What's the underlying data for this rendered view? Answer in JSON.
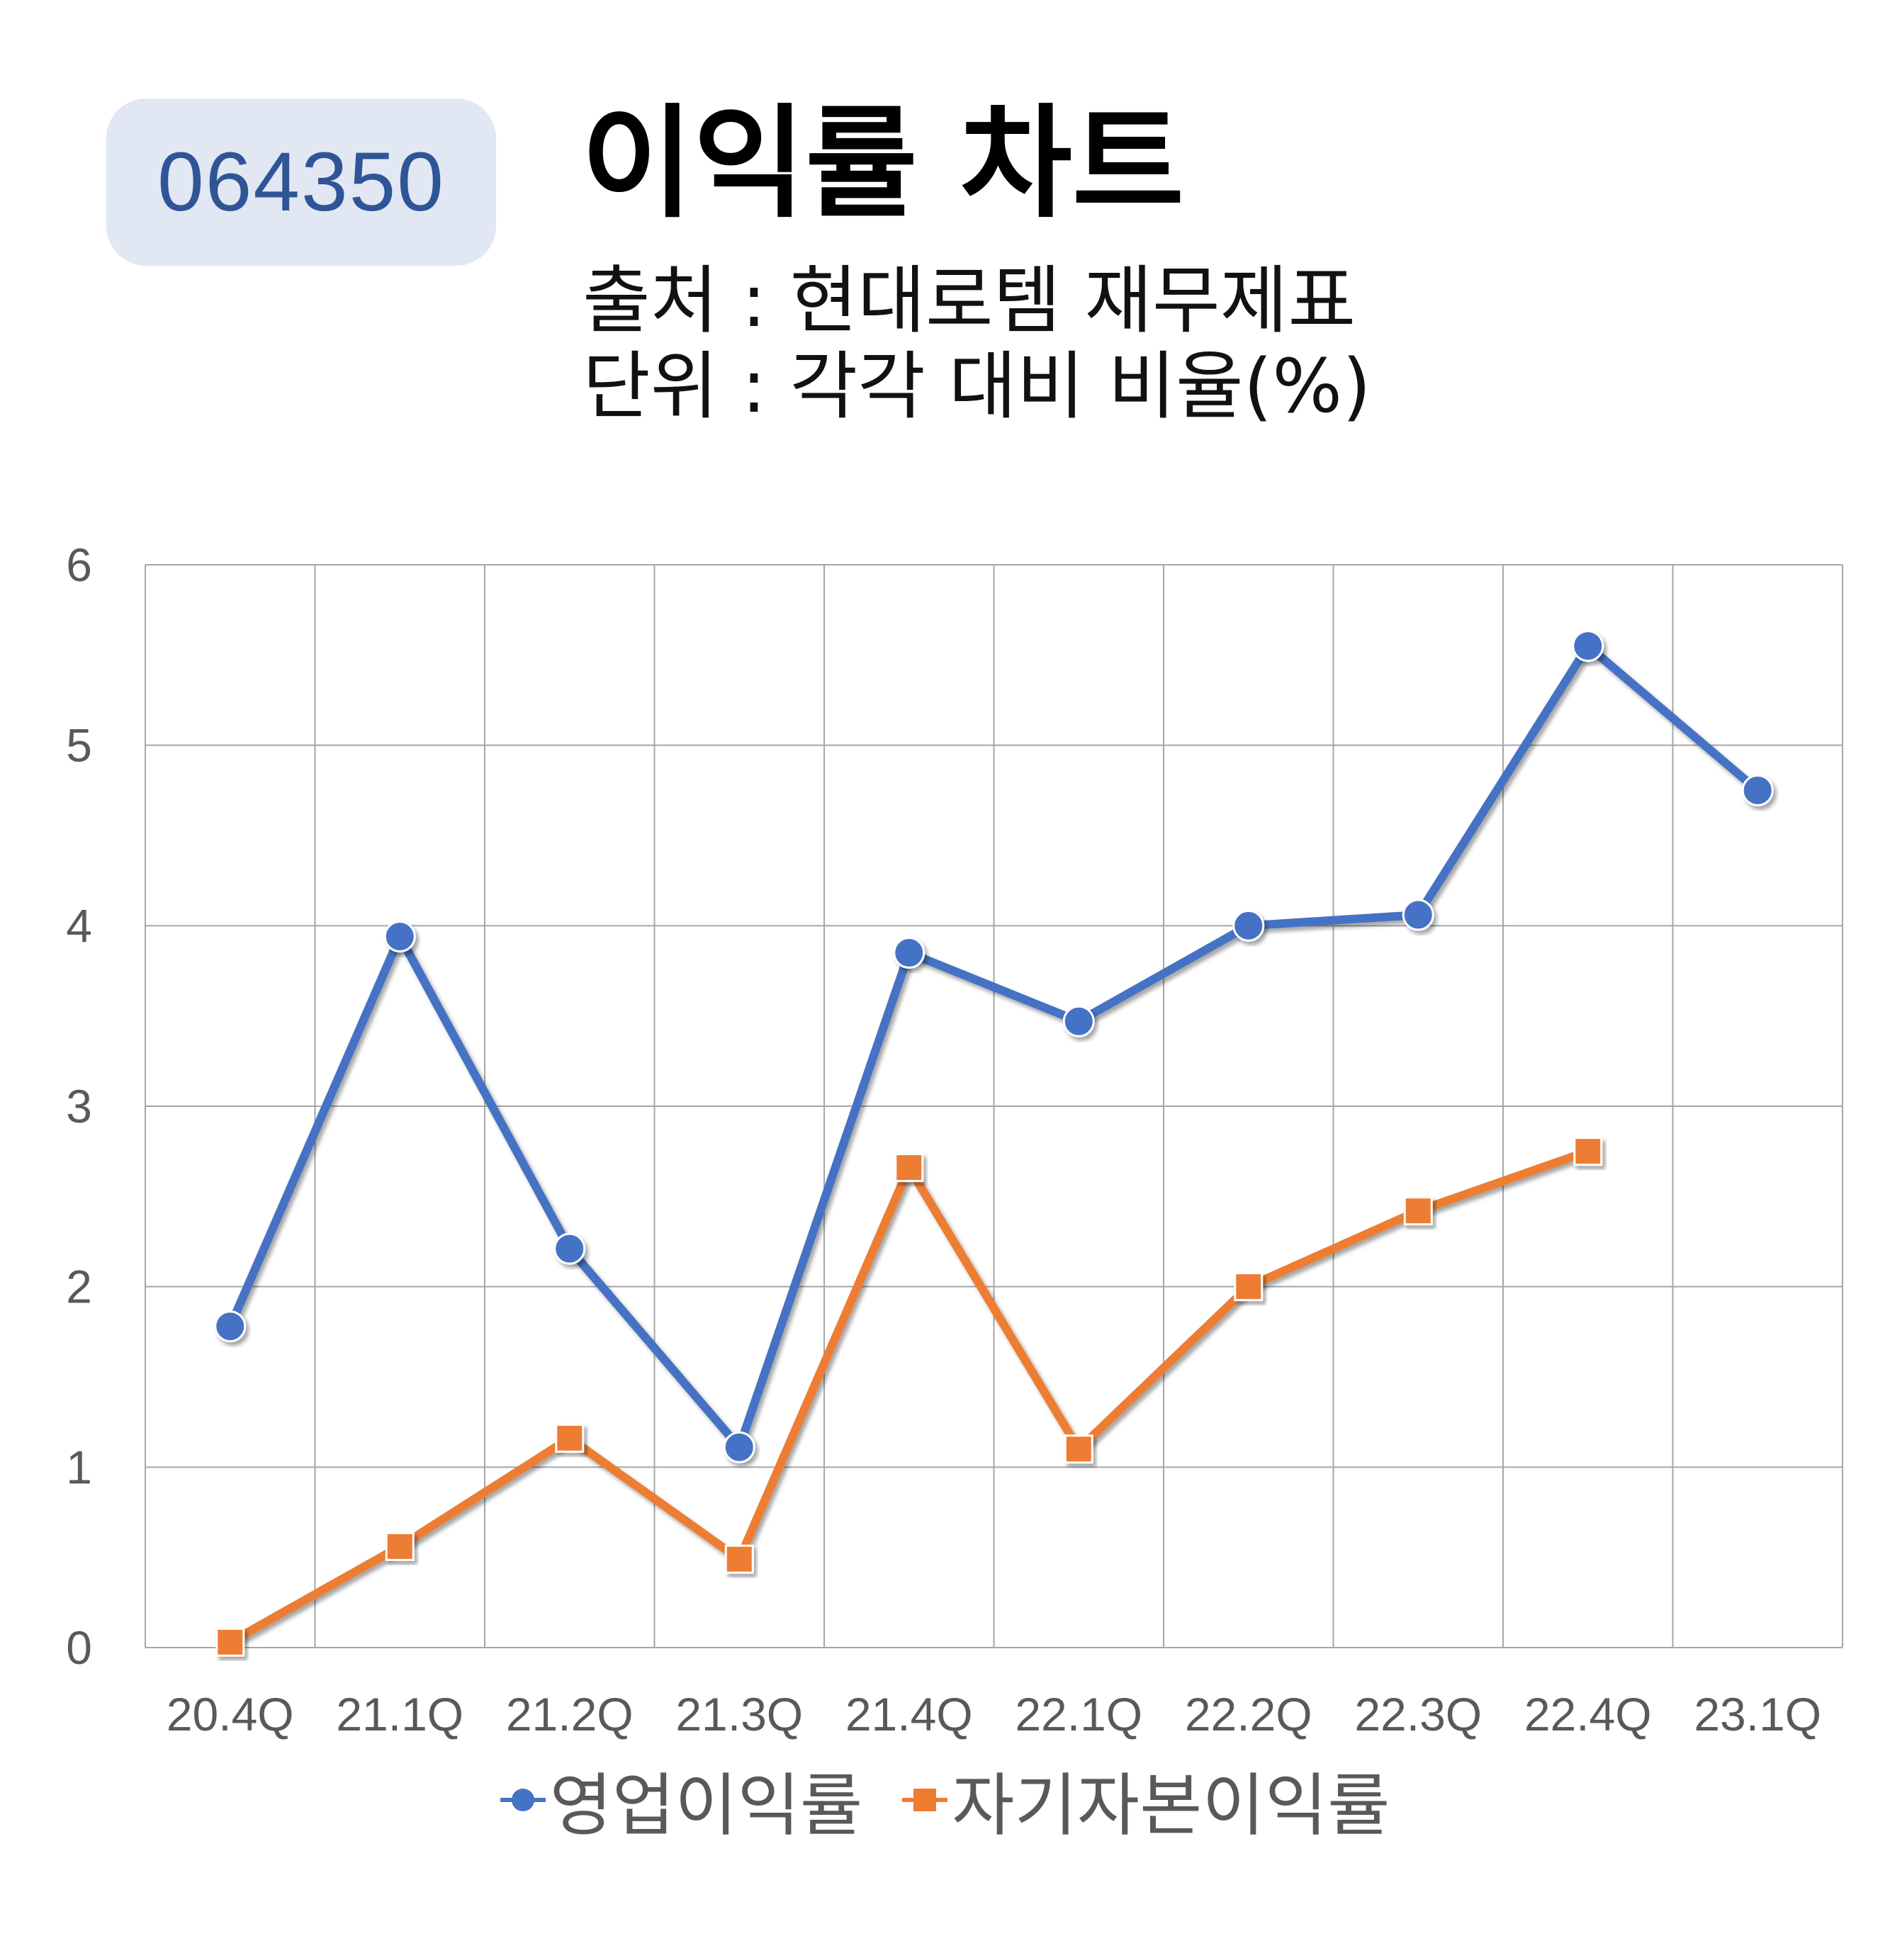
{
  "badge": {
    "code": "064350"
  },
  "header": {
    "title": "이익률 차트",
    "source": "출처 : 현대로템 재무제표",
    "unit": "단위 : 각각 대비 비율(%)"
  },
  "colors": {
    "operating": "#4472c4",
    "roe": "#ed7d31",
    "badge_bg": "#e1e7f3",
    "badge_text": "#2f5597",
    "grid": "#a6a6a6"
  },
  "chart_data": {
    "type": "line",
    "categories": [
      "20.4Q",
      "21.1Q",
      "21.2Q",
      "21.3Q",
      "21.4Q",
      "22.1Q",
      "22.2Q",
      "22.3Q",
      "22.4Q",
      "23.1Q"
    ],
    "series": [
      {
        "name": "영업이익률",
        "marker": "circle",
        "color": "#4472c4",
        "values": [
          1.78,
          3.94,
          2.21,
          1.11,
          3.85,
          3.47,
          4.0,
          4.06,
          5.55,
          4.75
        ]
      },
      {
        "name": "자기자본이익률",
        "marker": "square",
        "color": "#ed7d31",
        "values": [
          0.03,
          0.56,
          1.16,
          0.49,
          2.66,
          1.1,
          2.0,
          2.42,
          2.75,
          null
        ]
      }
    ],
    "ylim": [
      0,
      6
    ],
    "yticks": [
      "0",
      "1",
      "2",
      "3",
      "4",
      "5",
      "6"
    ],
    "grid": true,
    "legend_position": "bottom",
    "xlabel": "",
    "ylabel": ""
  }
}
